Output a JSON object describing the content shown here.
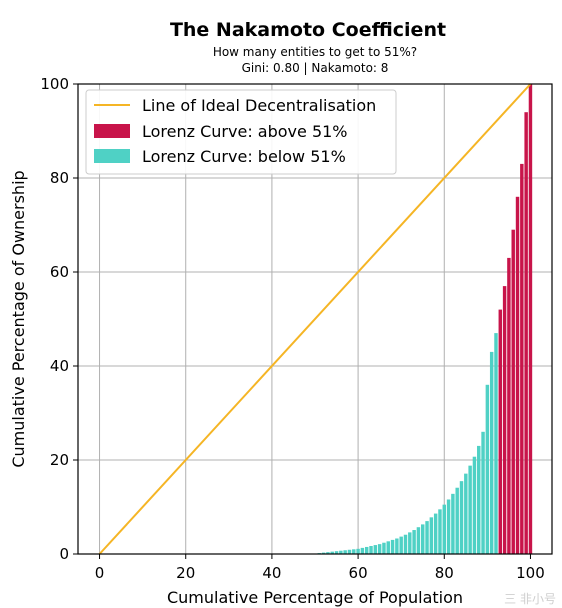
{
  "chart_data": {
    "type": "bar",
    "title": "The Nakamoto Coefficient",
    "subtitle": "How many entities to get to 51%?",
    "stats": "Gini: 0.80 | Nakamoto: 8",
    "xlabel": "Cumulative Percentage of Population",
    "ylabel": "Cumulative Percentage of Ownership",
    "xlim": [
      -5,
      105
    ],
    "ylim": [
      0,
      100
    ],
    "xticks": [
      "0",
      "20",
      "40",
      "60",
      "80",
      "100"
    ],
    "yticks": [
      "0",
      "20",
      "40",
      "60",
      "80",
      "100"
    ],
    "grid": true,
    "legend_position": "top-left",
    "colors": {
      "ideal_line": "#f5b525",
      "above": "#c8144a",
      "below": "#4fd1c5"
    },
    "legend": [
      {
        "label": "Line of Ideal Decentralisation",
        "kind": "line"
      },
      {
        "label": "Lorenz Curve: above 51%",
        "kind": "above"
      },
      {
        "label": "Lorenz Curve: below 51%",
        "kind": "below"
      }
    ],
    "ideal_line": {
      "x": [
        0,
        100
      ],
      "y": [
        0,
        100
      ]
    },
    "series": [
      {
        "kind": "below",
        "x": [
          50,
          51,
          52,
          53,
          54,
          55,
          56,
          57,
          58,
          59,
          60,
          61,
          62,
          63,
          64,
          65,
          66,
          67,
          68,
          69,
          70,
          71,
          72,
          73,
          74,
          75,
          76,
          77,
          78,
          79,
          80,
          81,
          82,
          83,
          84,
          85,
          86,
          87,
          88,
          89,
          90,
          91,
          92
        ],
        "y": [
          0.1,
          0.2,
          0.3,
          0.4,
          0.5,
          0.6,
          0.7,
          0.8,
          0.9,
          1.0,
          1.1,
          1.3,
          1.5,
          1.7,
          1.9,
          2.1,
          2.4,
          2.7,
          3.0,
          3.3,
          3.7,
          4.1,
          4.6,
          5.1,
          5.7,
          6.3,
          7.0,
          7.8,
          8.6,
          9.5,
          10.5,
          11.6,
          12.8,
          14.1,
          15.5,
          17.1,
          18.8,
          20.7,
          23.0,
          26.0,
          36.0,
          43.0,
          47.0
        ]
      },
      {
        "kind": "above",
        "x": [
          93,
          94,
          95,
          96,
          97,
          98,
          99,
          100
        ],
        "y": [
          52,
          57,
          63,
          69,
          76,
          83,
          94,
          100
        ]
      }
    ]
  },
  "watermark": "三 非小号"
}
